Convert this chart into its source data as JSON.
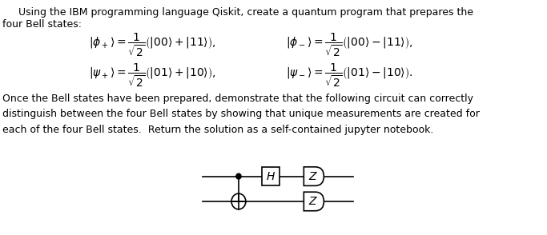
{
  "bg_color": "#ffffff",
  "text_color": "#000000",
  "figsize": [
    6.83,
    2.94
  ],
  "dpi": 100,
  "intro_line1": "    Using the IBM programming language Qiskit, create a quantum program that prepares the",
  "intro_line2": "four Bell states:",
  "body_line1": "Once the Bell states have been prepared, demonstrate that the following circuit can correctly",
  "body_line2": "distinguish between the four Bell states by showing that unique measurements are created for",
  "body_line3": "each of the four Bell states.  Return the solution as a self-contained jupyter notebook.",
  "eq1_left": "$|\\phi_+\\rangle = \\dfrac{1}{\\sqrt{2}}\\left(|00\\rangle + |11\\rangle\\right),$",
  "eq1_right": "$|\\phi_-\\rangle = \\dfrac{1}{\\sqrt{2}}\\left(|00\\rangle - |11\\rangle\\right),$",
  "eq2_left": "$|\\psi_+\\rangle = \\dfrac{1}{\\sqrt{2}}\\left(|01\\rangle + |10\\rangle\\right),$",
  "eq2_right": "$|\\psi_-\\rangle = \\dfrac{1}{\\sqrt{2}}\\left(|01\\rangle - |10\\rangle\\right).$",
  "line_color": "#000000",
  "fs_body": 9.0,
  "fs_eq": 10.0
}
